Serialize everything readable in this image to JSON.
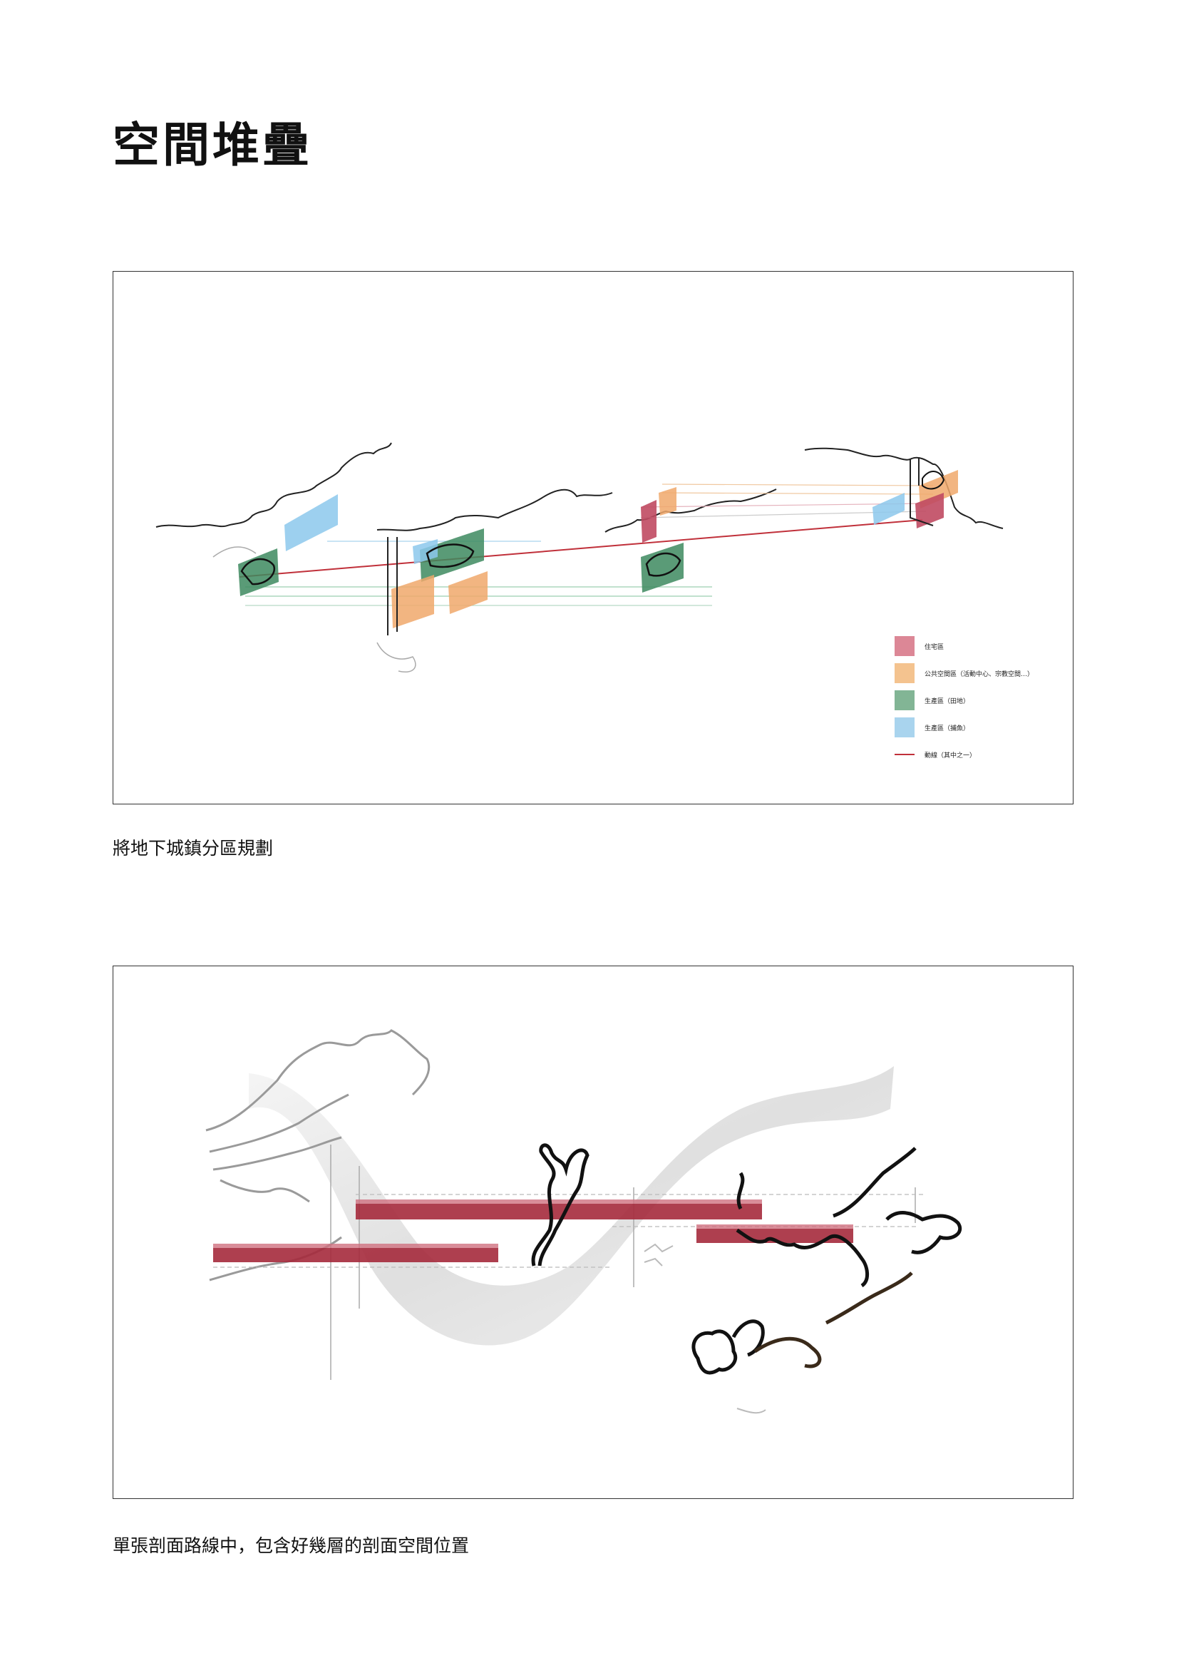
{
  "page": {
    "title": "空間堆疊",
    "caption1": "將地下城鎮分區規劃",
    "caption2": "單張剖面路線中，包含好幾層的剖面空間位置"
  },
  "legend": [
    {
      "label": "住宅區",
      "color": "#dc8796",
      "kind": "swatch"
    },
    {
      "label": "公共空間區（活動中心、宗教空間…）",
      "color": "#f4c38f",
      "kind": "swatch"
    },
    {
      "label": "生產區（田地）",
      "color": "#82b595",
      "kind": "swatch"
    },
    {
      "label": "生產區（捕魚）",
      "color": "#a9d4ee",
      "kind": "swatch"
    },
    {
      "label": "動線（其中之一）",
      "color": "#c0303a",
      "kind": "line"
    }
  ],
  "colors": {
    "residential": "#c04a62",
    "public": "#f0a86b",
    "farm": "#3d8a5f",
    "fishing": "#8cc8ec",
    "route": "#a52a3c"
  }
}
